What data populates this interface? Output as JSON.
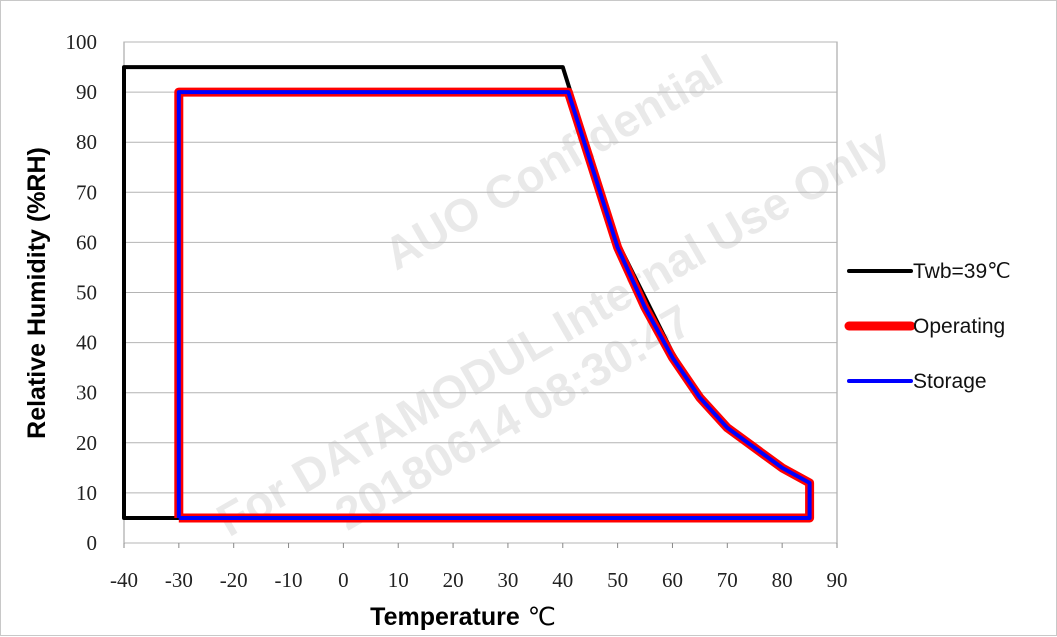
{
  "chart_data": {
    "type": "line",
    "title": "",
    "xlabel": "Temperature",
    "xlabel_unit": "℃",
    "ylabel": "Relative Humidity (%RH)",
    "xlim": [
      -40,
      90
    ],
    "ylim": [
      0,
      100
    ],
    "x_ticks": [
      "-40",
      "-30",
      "-20",
      "-10",
      "0",
      "10",
      "20",
      "30",
      "40",
      "50",
      "60",
      "70",
      "80",
      "90"
    ],
    "y_ticks": [
      "0",
      "10",
      "20",
      "30",
      "40",
      "50",
      "60",
      "70",
      "80",
      "90",
      "100"
    ],
    "grid": "horizontal",
    "legend_position": "right",
    "series": [
      {
        "name": "Twb=39℃",
        "color": "#000000",
        "points": [
          [
            -30,
            5
          ],
          [
            -40,
            5
          ],
          [
            -40,
            95
          ],
          [
            40,
            95
          ],
          [
            50,
            60
          ],
          [
            60,
            38
          ],
          [
            65,
            29
          ],
          [
            70,
            23
          ],
          [
            80,
            15
          ],
          [
            85,
            12
          ],
          [
            85,
            5
          ],
          [
            -30,
            5
          ]
        ]
      },
      {
        "name": "Operating",
        "color": "#ff0000",
        "points": [
          [
            -30,
            5
          ],
          [
            -30,
            90
          ],
          [
            41,
            90
          ],
          [
            50,
            59
          ],
          [
            55,
            47
          ],
          [
            60,
            37
          ],
          [
            65,
            29
          ],
          [
            70,
            23
          ],
          [
            80,
            15
          ],
          [
            85,
            12
          ],
          [
            85,
            5
          ],
          [
            -30,
            5
          ]
        ]
      },
      {
        "name": "Storage",
        "color": "#0000ff",
        "points": [
          [
            -30,
            5
          ],
          [
            -30,
            90
          ],
          [
            41,
            90
          ],
          [
            50,
            59
          ],
          [
            55,
            47
          ],
          [
            60,
            37
          ],
          [
            65,
            29
          ],
          [
            70,
            23
          ],
          [
            80,
            15
          ],
          [
            85,
            12
          ],
          [
            85,
            5
          ],
          [
            -30,
            5
          ]
        ]
      }
    ],
    "watermark": [
      "AUO Confidential",
      "For DATAMODUL Internal Use Only",
      "20180614 08:30:47"
    ]
  }
}
